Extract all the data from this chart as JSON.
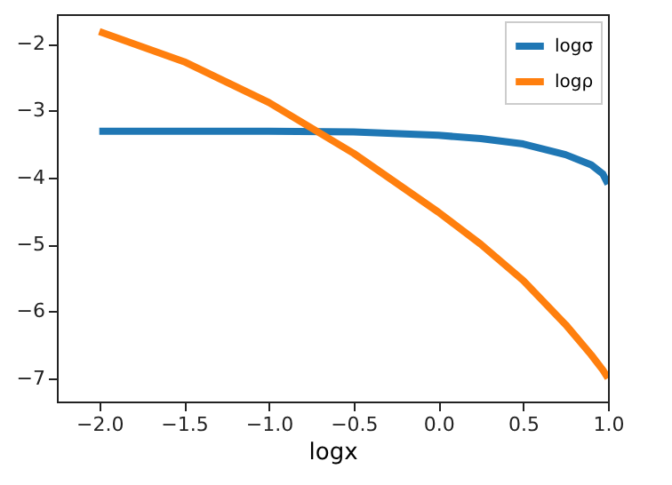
{
  "chart_data": {
    "type": "line",
    "xlabel": "logx",
    "xlim": [
      -2.25,
      1.0
    ],
    "xticks": [
      {
        "value": -2,
        "label": "−2.0"
      },
      {
        "value": -1.5,
        "label": "−1.5"
      },
      {
        "value": -1,
        "label": "−1.0"
      },
      {
        "value": -0.5,
        "label": "−0.5"
      },
      {
        "value": 0,
        "label": "0.0"
      },
      {
        "value": 0.5,
        "label": "0.5"
      },
      {
        "value": 1,
        "label": "1.0"
      }
    ],
    "ylim": [
      -7.35,
      -1.56
    ],
    "yticks": [
      {
        "value": -7,
        "label": "−7"
      },
      {
        "value": -6,
        "label": "−6"
      },
      {
        "value": -5,
        "label": "−5"
      },
      {
        "value": -4,
        "label": "−4"
      },
      {
        "value": -3,
        "label": "−3"
      },
      {
        "value": -2,
        "label": "−2"
      }
    ],
    "x": [
      -2.0,
      -1.5,
      -1.0,
      -0.5,
      0.0,
      0.25,
      0.5,
      0.75,
      0.9,
      0.97,
      1.0
    ],
    "series": [
      {
        "name": "logσ",
        "color": "#1f77b4",
        "values": [
          -3.31,
          -3.31,
          -3.31,
          -3.32,
          -3.37,
          -3.42,
          -3.5,
          -3.66,
          -3.81,
          -3.95,
          -4.1
        ]
      },
      {
        "name": "logρ",
        "color": "#ff7f0e",
        "values": [
          -1.82,
          -2.27,
          -2.88,
          -3.64,
          -4.52,
          -5.0,
          -5.54,
          -6.2,
          -6.65,
          -6.88,
          -7.0
        ]
      }
    ],
    "legend": "top right",
    "grid": false,
    "line_style": "solid",
    "marker": "none"
  }
}
